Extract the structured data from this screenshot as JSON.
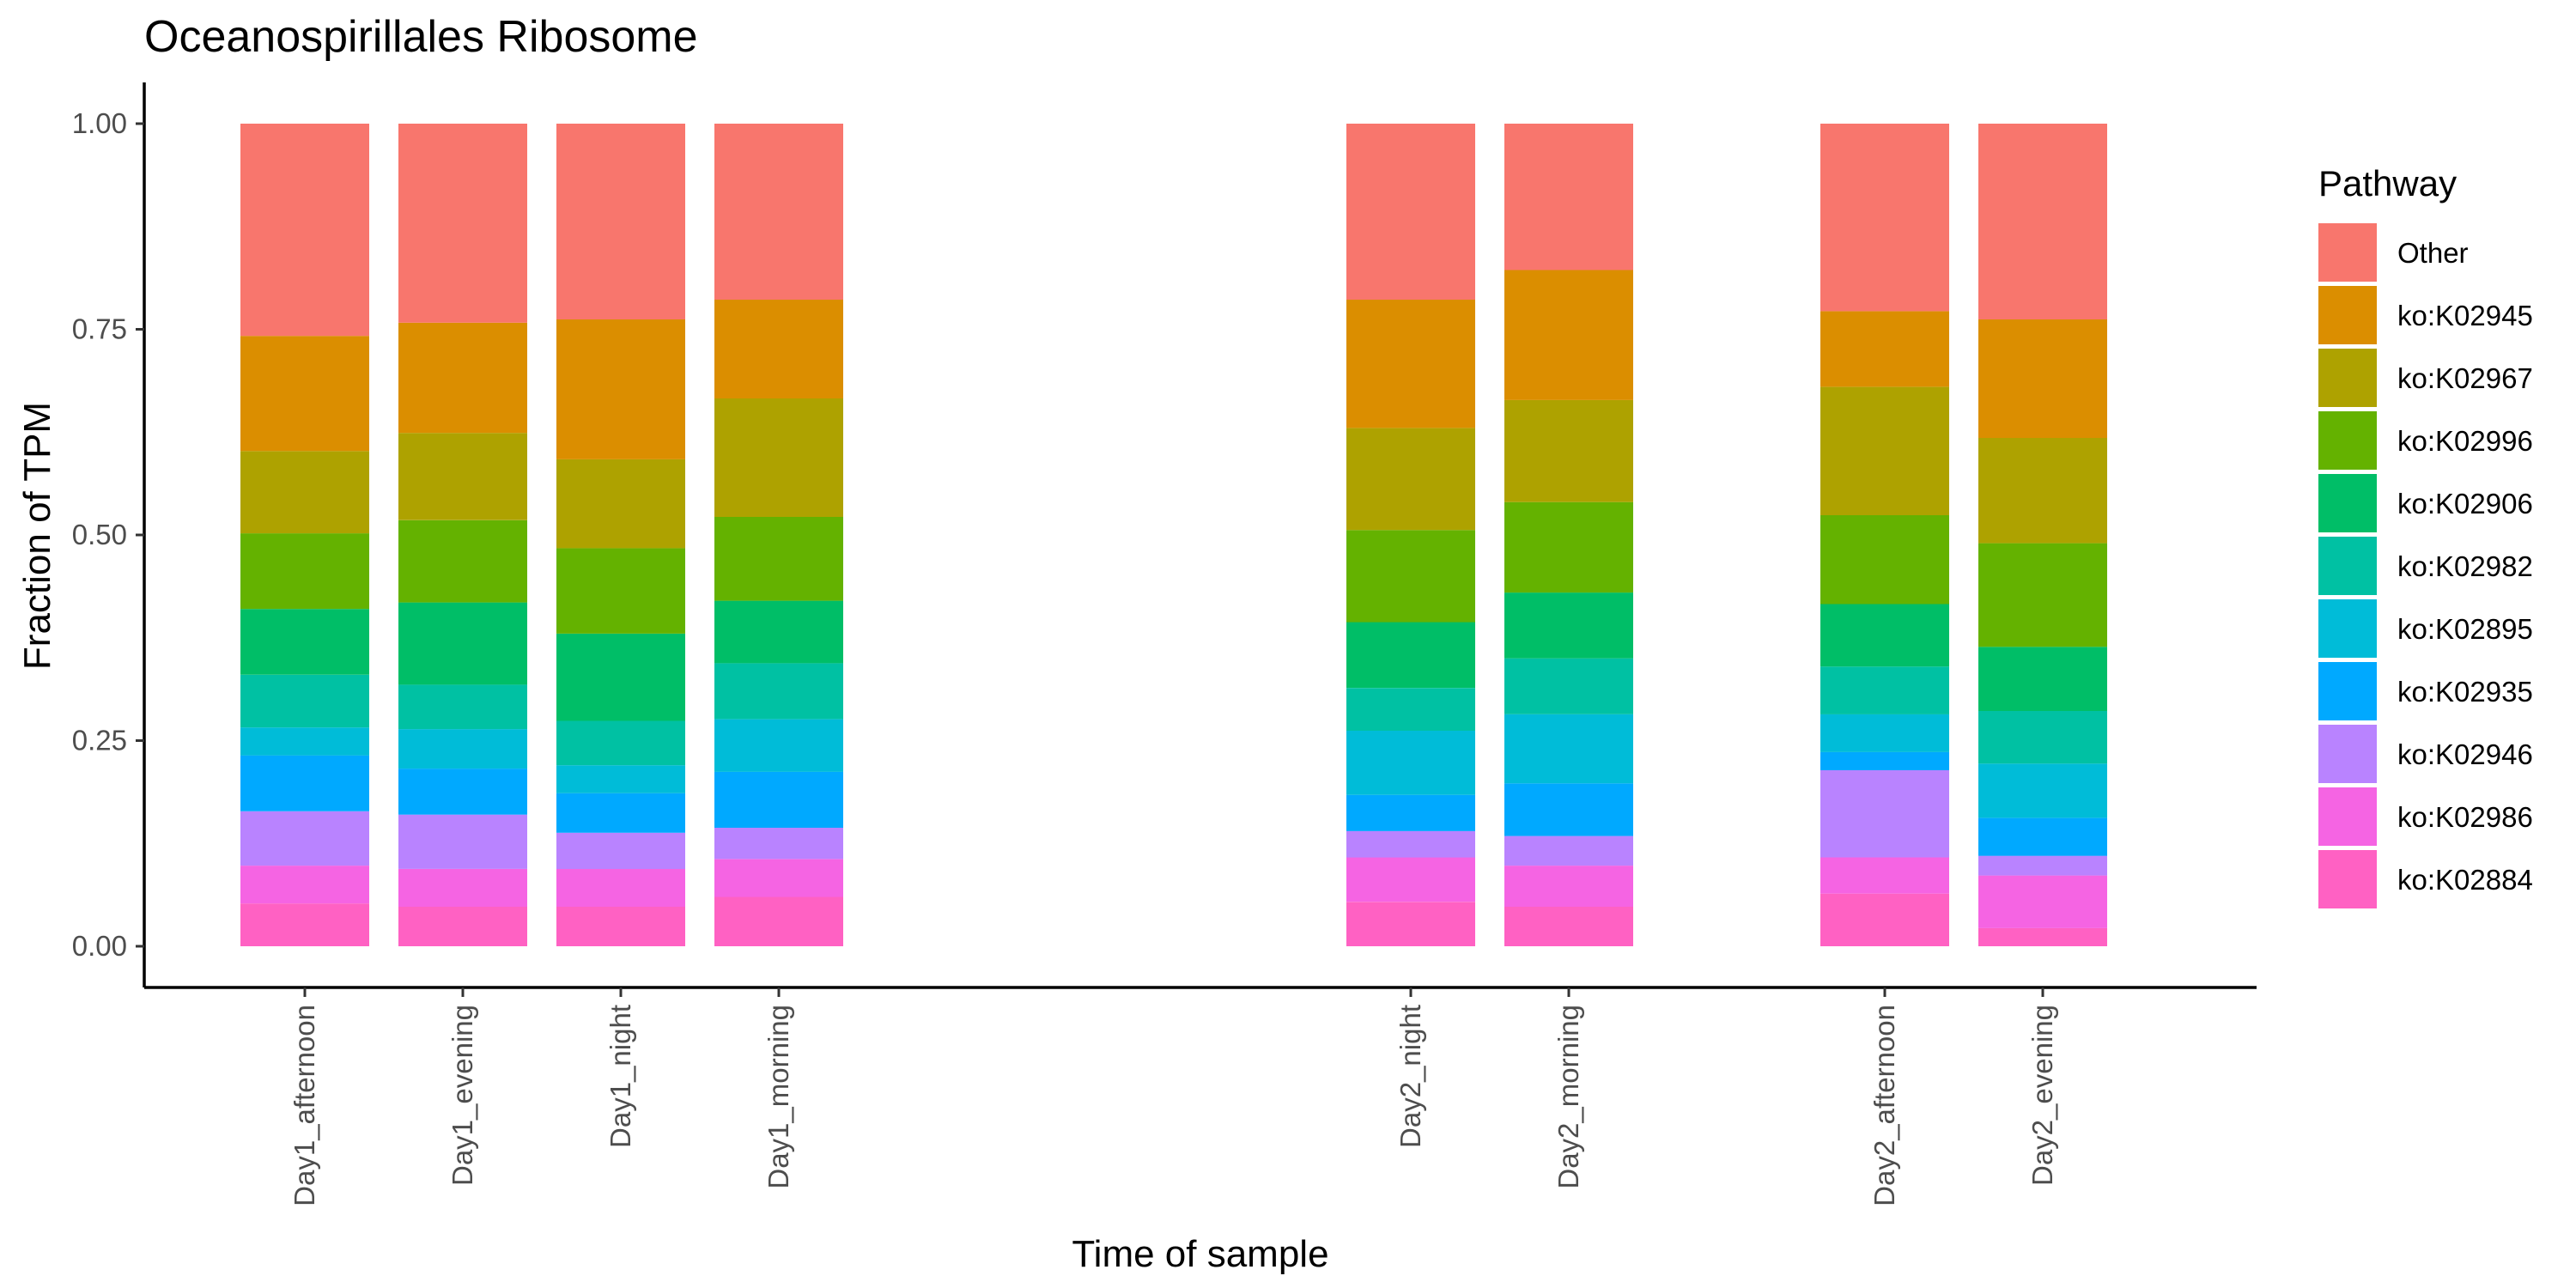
{
  "chart_data": {
    "type": "bar",
    "stacked": true,
    "title": "Oceanospirillales Ribosome",
    "xlabel": "Time of sample",
    "ylabel": "Fraction of TPM",
    "ylim": [
      0,
      1
    ],
    "yticks": [
      "0.00",
      "0.25",
      "0.50",
      "0.75",
      "1.00"
    ],
    "x": [
      1,
      2,
      3,
      4,
      8,
      9,
      11,
      12
    ],
    "categories": [
      "Day1_afternoon",
      "Day1_evening",
      "Day1_night",
      "Day1_morning",
      "Day2_night",
      "Day2_morning",
      "Day2_afternoon",
      "Day2_evening"
    ],
    "legend": {
      "title": "Pathway",
      "position": "right"
    },
    "grid": false,
    "series": [
      {
        "name": "ko:K02884",
        "color": "#FF61C3",
        "values": [
          0.052,
          0.048,
          0.048,
          0.06,
          0.054,
          0.048,
          0.064,
          0.022
        ]
      },
      {
        "name": "ko:K02986",
        "color": "#F564E3",
        "values": [
          0.046,
          0.046,
          0.046,
          0.046,
          0.054,
          0.05,
          0.044,
          0.064
        ]
      },
      {
        "name": "ko:K02946",
        "color": "#B983FF",
        "values": [
          0.066,
          0.066,
          0.044,
          0.038,
          0.032,
          0.036,
          0.106,
          0.024
        ]
      },
      {
        "name": "ko:K02935",
        "color": "#00A9FF",
        "values": [
          0.068,
          0.056,
          0.048,
          0.068,
          0.044,
          0.064,
          0.022,
          0.046
        ]
      },
      {
        "name": "ko:K02895",
        "color": "#00BCD8",
        "values": [
          0.034,
          0.048,
          0.034,
          0.064,
          0.078,
          0.084,
          0.046,
          0.066
        ]
      },
      {
        "name": "ko:K02982",
        "color": "#00C1A3",
        "values": [
          0.064,
          0.054,
          0.054,
          0.068,
          0.052,
          0.068,
          0.058,
          0.064
        ]
      },
      {
        "name": "ko:K02906",
        "color": "#00BE67",
        "values": [
          0.08,
          0.1,
          0.106,
          0.076,
          0.08,
          0.08,
          0.076,
          0.078
        ]
      },
      {
        "name": "ko:K02996",
        "color": "#64B200",
        "values": [
          0.092,
          0.1,
          0.104,
          0.102,
          0.112,
          0.11,
          0.108,
          0.126
        ]
      },
      {
        "name": "ko:K02967",
        "color": "#AEA200",
        "values": [
          0.1,
          0.106,
          0.108,
          0.144,
          0.124,
          0.124,
          0.156,
          0.128
        ]
      },
      {
        "name": "ko:K02945",
        "color": "#DB8E00",
        "values": [
          0.14,
          0.134,
          0.17,
          0.12,
          0.156,
          0.158,
          0.092,
          0.144
        ]
      },
      {
        "name": "Other",
        "color": "#F8766D",
        "values": [
          0.258,
          0.242,
          0.238,
          0.214,
          0.214,
          0.178,
          0.228,
          0.238
        ]
      }
    ]
  }
}
